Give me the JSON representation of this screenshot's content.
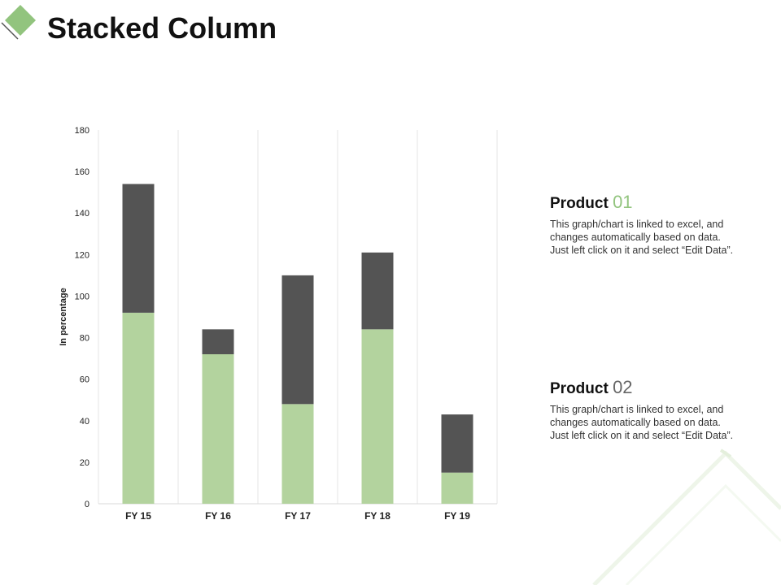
{
  "header": {
    "title": "Stacked Column"
  },
  "colors": {
    "series1": "#b3d39e",
    "series2": "#545454",
    "accent": "#92c47e",
    "num2": "#666666"
  },
  "products": [
    {
      "label": "Product",
      "number": "01",
      "description": "This graph/chart is linked to excel, and changes automatically based on data. Just left click on it and select “Edit Data”."
    },
    {
      "label": "Product",
      "number": "02",
      "description": "This graph/chart is linked to excel, and changes automatically based on data. Just left click on it and select “Edit Data”."
    }
  ],
  "chart_data": {
    "type": "bar",
    "stacked": true,
    "categories": [
      "FY 15",
      "FY 16",
      "FY 17",
      "FY 18",
      "FY 19"
    ],
    "series": [
      {
        "values": [
          92,
          72,
          48,
          84,
          15
        ]
      },
      {
        "values": [
          62,
          12,
          62,
          37,
          28
        ]
      }
    ],
    "ylabel": "In percentage",
    "ylim": [
      0,
      180
    ],
    "yticks": [
      0,
      20,
      40,
      60,
      80,
      100,
      120,
      140,
      160,
      180
    ],
    "grid": "vertical-category-separators"
  }
}
